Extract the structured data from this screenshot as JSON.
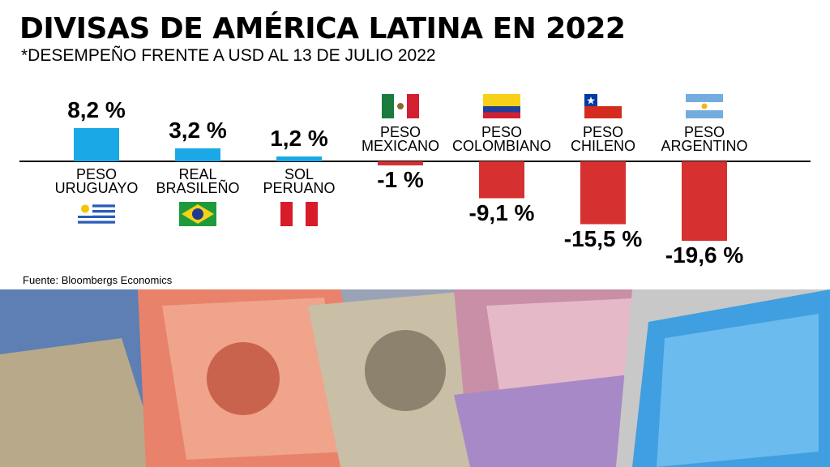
{
  "title": "DIVISAS DE AMÉRICA LATINA EN 2022",
  "subtitle": "*DESEMPEÑO FRENTE A USD AL 13 DE JULIO 2022",
  "source": "Fuente: Bloombergs Economics",
  "colors": {
    "positive": "#1aa9e6",
    "negative": "#d63031",
    "baseline": "#000000"
  },
  "chart_data": {
    "type": "bar",
    "title": "DIVISAS DE AMÉRICA LATINA EN 2022",
    "subtitle": "*DESEMPEÑO FRENTE A USD AL 13 DE JULIO 2022",
    "categories": [
      [
        "PESO",
        "URUGUAYO"
      ],
      [
        "REAL",
        "BRASILEÑO"
      ],
      [
        "SOL",
        "PERUANO"
      ],
      [
        "PESO",
        "MEXICANO"
      ],
      [
        "PESO",
        "COLOMBIANO"
      ],
      [
        "PESO",
        "CHILENO"
      ],
      [
        "PESO",
        "ARGENTINO"
      ]
    ],
    "values": [
      8.2,
      3.2,
      1.2,
      -1,
      -9.1,
      -15.5,
      -19.6
    ],
    "value_labels": [
      "8,2 %",
      "3,2 %",
      "1,2 %",
      "-1 %",
      "-9,1 %",
      "-15,5 %",
      "-19,6 %"
    ],
    "flags": [
      "uruguay-flag-icon",
      "brazil-flag-icon",
      "peru-flag-icon",
      "mexico-flag-icon",
      "colombia-flag-icon",
      "chile-flag-icon",
      "argentina-flag-icon"
    ],
    "unit": "%",
    "ylim": [
      -20,
      9
    ],
    "grid": false,
    "legend": "none"
  }
}
